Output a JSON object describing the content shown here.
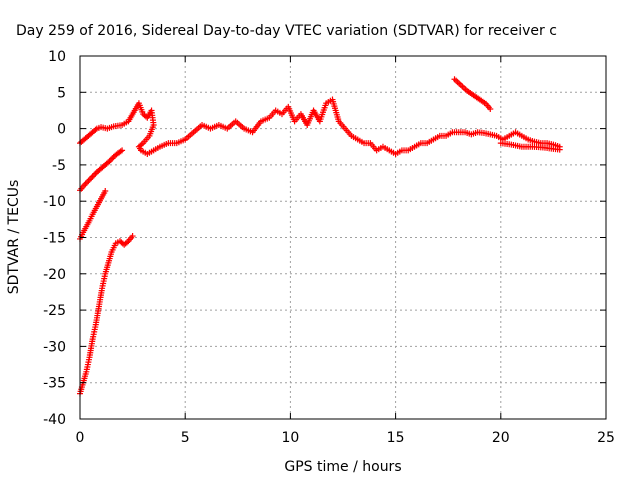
{
  "chart_data": {
    "type": "scatter",
    "title": "Day 259 of 2016, Sidereal Day-to-day VTEC variation (SDTVAR) for receiver c",
    "xlabel": "GPS time / hours",
    "ylabel": "SDTVAR / TECUs",
    "xlim": [
      0,
      25
    ],
    "ylim": [
      -40,
      10
    ],
    "xticks": [
      0,
      5,
      10,
      15,
      20,
      25
    ],
    "yticks": [
      -40,
      -35,
      -30,
      -25,
      -20,
      -15,
      -10,
      -5,
      0,
      5,
      10
    ],
    "grid": true,
    "marker": "plus",
    "color": "#ff0000",
    "series": [
      {
        "name": "main-track",
        "x": [
          0.0,
          0.2,
          0.4,
          0.6,
          0.8,
          1.0,
          1.3,
          1.6,
          2.0,
          2.3,
          2.6,
          2.8,
          3.0,
          3.2,
          3.4,
          3.5,
          3.3,
          3.0,
          2.8,
          2.9,
          3.2,
          3.5,
          3.8,
          4.2,
          4.6,
          5.0,
          5.4,
          5.8,
          6.2,
          6.6,
          7.0,
          7.4,
          7.8,
          8.2,
          8.6,
          9.0,
          9.3,
          9.6,
          9.9,
          10.2,
          10.5,
          10.8,
          11.1,
          11.4,
          11.7,
          12.0,
          12.3,
          12.6,
          12.9,
          13.2,
          13.5,
          13.8,
          14.1,
          14.4,
          14.7,
          15.0,
          15.3,
          15.6,
          15.9,
          16.2,
          16.5,
          16.8,
          17.1,
          17.4,
          17.7,
          18.0,
          18.3,
          18.6,
          18.9,
          19.2,
          19.5,
          19.8,
          20.1,
          20.4,
          20.7,
          21.0,
          21.3,
          21.6,
          21.9,
          22.2,
          22.5,
          22.8
        ],
        "y": [
          -2.0,
          -1.5,
          -1.0,
          -0.5,
          0.0,
          0.2,
          0.0,
          0.3,
          0.5,
          1.0,
          2.5,
          3.5,
          2.0,
          1.5,
          2.5,
          0.5,
          -1.0,
          -2.0,
          -2.5,
          -3.0,
          -3.5,
          -3.0,
          -2.5,
          -2.0,
          -2.0,
          -1.5,
          -0.5,
          0.5,
          0.0,
          0.5,
          0.0,
          1.0,
          0.0,
          -0.5,
          1.0,
          1.5,
          2.5,
          2.0,
          3.0,
          1.0,
          2.0,
          0.5,
          2.5,
          1.0,
          3.5,
          4.0,
          1.0,
          0.0,
          -1.0,
          -1.5,
          -2.0,
          -2.0,
          -3.0,
          -2.5,
          -3.0,
          -3.5,
          -3.0,
          -3.0,
          -2.5,
          -2.0,
          -2.0,
          -1.5,
          -1.0,
          -1.0,
          -0.5,
          -0.5,
          -0.5,
          -0.8,
          -0.5,
          -0.6,
          -0.8,
          -1.0,
          -1.5,
          -1.0,
          -0.5,
          -1.0,
          -1.5,
          -1.8,
          -2.0,
          -2.0,
          -2.2,
          -2.5
        ]
      },
      {
        "name": "lower-band",
        "x": [
          20.0,
          20.5,
          21.0,
          21.5,
          22.0,
          22.5,
          22.8
        ],
        "y": [
          -2.0,
          -2.2,
          -2.5,
          -2.5,
          -2.6,
          -2.8,
          -2.9
        ]
      },
      {
        "name": "upper-right-segment",
        "x": [
          17.8,
          18.1,
          18.4,
          18.7,
          19.0,
          19.3,
          19.5
        ],
        "y": [
          6.8,
          6.0,
          5.2,
          4.6,
          4.0,
          3.4,
          2.7
        ]
      },
      {
        "name": "segment-from-minus-8",
        "x": [
          0.0,
          0.2,
          0.4,
          0.6,
          0.8,
          1.0,
          1.2,
          1.4,
          1.6,
          1.8,
          2.0
        ],
        "y": [
          -8.5,
          -7.8,
          -7.2,
          -6.6,
          -6.0,
          -5.5,
          -5.0,
          -4.5,
          -3.9,
          -3.4,
          -3.0
        ]
      },
      {
        "name": "segment-from-minus-15",
        "x": [
          0.0,
          0.15,
          0.3,
          0.45,
          0.6,
          0.75,
          0.9,
          1.05,
          1.2
        ],
        "y": [
          -15.2,
          -14.3,
          -13.5,
          -12.7,
          -11.8,
          -11.0,
          -10.2,
          -9.4,
          -8.6
        ]
      },
      {
        "name": "segment-from-minus-36",
        "x": [
          0.0,
          0.15,
          0.3,
          0.45,
          0.6,
          0.75,
          0.9,
          1.05,
          1.2,
          1.35,
          1.5,
          1.7,
          1.9,
          2.1,
          2.3,
          2.5
        ],
        "y": [
          -36.5,
          -35.0,
          -33.5,
          -31.5,
          -29.0,
          -27.0,
          -24.5,
          -22.0,
          -20.0,
          -18.5,
          -17.0,
          -15.8,
          -15.5,
          -16.0,
          -15.5,
          -14.8
        ]
      }
    ]
  }
}
